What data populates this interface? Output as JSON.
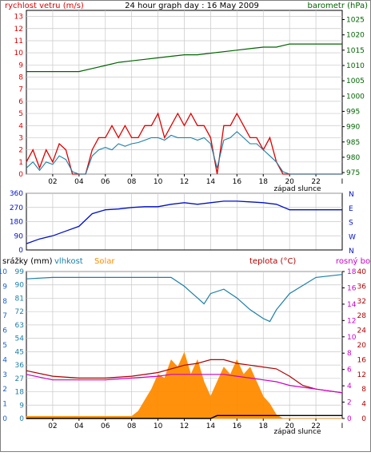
{
  "colors": {
    "wind": "#e00000",
    "gust": "#1a7fa8",
    "pressure": "#006400",
    "direction": "#0010c8",
    "humidity": "#1a7fa8",
    "solar": "#ff8c00",
    "temperature": "#b00000",
    "dewpoint": "#cc00cc",
    "rain": "#000000",
    "grid": "#c8c8c8",
    "axis": "#000000"
  },
  "chart_data": [
    {
      "type": "line",
      "title": "24 hour graph day : 16 May 2009",
      "left_label": "rychlost vetru (m/s)",
      "right_label": "barometr (hPa)",
      "bottom_note": "západ slunce",
      "x_ticks": [
        "02",
        "04",
        "06",
        "08",
        "10",
        "12",
        "14",
        "16",
        "18",
        "20",
        "22"
      ],
      "x_range": [
        0,
        24
      ],
      "y_left_ticks": [
        "0",
        "1",
        "2",
        "3",
        "4",
        "5",
        "6",
        "7",
        "8",
        "9",
        "10",
        "11",
        "12",
        "13"
      ],
      "y_left_range": [
        0,
        13.5
      ],
      "y_right_ticks": [
        "975",
        "980",
        "985",
        "990",
        "995",
        "1000",
        "1005",
        "1010",
        "1015",
        "1020",
        "1025"
      ],
      "y_right_range": [
        974.5,
        1028
      ],
      "grid": true,
      "series": [
        {
          "key": "wind",
          "x": [
            0,
            0.5,
            1,
            1.5,
            2,
            2.5,
            3,
            3.5,
            4,
            4.5,
            5,
            5.5,
            6,
            6.5,
            7,
            7.5,
            8,
            8.5,
            9,
            9.5,
            10,
            10.5,
            11,
            11.5,
            12,
            12.5,
            13,
            13.5,
            14,
            14.5,
            15,
            15.5,
            16,
            16.5,
            17,
            17.5,
            18,
            18.5,
            19,
            19.5,
            20,
            22,
            24
          ],
          "values": [
            1,
            2,
            0.5,
            2,
            1,
            2.5,
            2,
            0,
            0,
            0,
            2,
            3,
            3,
            4,
            3,
            4,
            3,
            3,
            4,
            4,
            5,
            3,
            4,
            5,
            4,
            5,
            4,
            4,
            3,
            0,
            4,
            4,
            5,
            4,
            3,
            3,
            2,
            3,
            1,
            0,
            0,
            0,
            0
          ]
        },
        {
          "key": "gust",
          "x": [
            0,
            0.5,
            1,
            1.5,
            2,
            2.5,
            3,
            3.5,
            4,
            4.5,
            5,
            5.5,
            6,
            6.5,
            7,
            7.5,
            8,
            8.5,
            9,
            9.5,
            10,
            10.5,
            11,
            11.5,
            12,
            12.5,
            13,
            13.5,
            14,
            14.5,
            15,
            15.5,
            16,
            16.5,
            17,
            17.5,
            18,
            18.5,
            19,
            19.5,
            20,
            22,
            24
          ],
          "values": [
            0.5,
            1,
            0.3,
            1,
            0.8,
            1.5,
            1.2,
            0.2,
            0,
            0,
            1.5,
            2,
            2.2,
            2,
            2.5,
            2.3,
            2.5,
            2.6,
            2.8,
            3,
            3,
            2.8,
            3.2,
            3,
            3,
            3,
            2.8,
            3,
            2.5,
            0.5,
            2.8,
            3,
            3.5,
            3,
            2.5,
            2.5,
            2,
            1.5,
            1,
            0.2,
            0,
            0,
            0
          ]
        },
        {
          "key": "pressure",
          "x": [
            0,
            4,
            5,
            6,
            7,
            8,
            9,
            10,
            11,
            12,
            13,
            14,
            15,
            16,
            17,
            18,
            19,
            20,
            22,
            24
          ],
          "values": [
            1008,
            1008,
            1009,
            1010,
            1011,
            1011.5,
            1012,
            1012.5,
            1013,
            1013.5,
            1013.5,
            1014,
            1014.5,
            1015,
            1015.5,
            1016,
            1016,
            1017,
            1017,
            1017
          ]
        }
      ]
    },
    {
      "type": "line",
      "y_left_ticks": [
        "0",
        "90",
        "180",
        "270",
        "360"
      ],
      "y_left_range": [
        0,
        360
      ],
      "y_right_ticks": [
        "N",
        "E",
        "S",
        "W",
        "N"
      ],
      "series": [
        {
          "key": "direction",
          "x": [
            0,
            1,
            2,
            3,
            4,
            5,
            6,
            7,
            8,
            9,
            10,
            11,
            12,
            13,
            14,
            15,
            16,
            17,
            18,
            19,
            20,
            22,
            24
          ],
          "values": [
            40,
            70,
            90,
            120,
            150,
            230,
            255,
            260,
            270,
            275,
            275,
            290,
            300,
            290,
            300,
            310,
            310,
            305,
            300,
            290,
            255,
            255,
            255
          ]
        }
      ]
    },
    {
      "type": "area",
      "left_labels": [
        "srážky (mm)",
        "vlhkost",
        "Solar"
      ],
      "right_labels": [
        "teplota (°C)",
        "rosný bod"
      ],
      "bottom_note": "západ slunce",
      "x_ticks": [
        "02",
        "04",
        "06",
        "08",
        "10",
        "12",
        "14",
        "16",
        "18",
        "20",
        "22"
      ],
      "y_left_ticks_outer": [
        "0",
        "1",
        "2",
        "3",
        "4",
        "5",
        "6",
        "7",
        "8",
        "9",
        "10"
      ],
      "y_left_ticks_inner": [
        "0",
        "9",
        "18",
        "27",
        "36",
        "45",
        "54",
        "63",
        "72",
        "81",
        "90",
        "99"
      ],
      "y_right_ticks_outer": [
        "0",
        "4",
        "8",
        "12",
        "16",
        "20",
        "24",
        "28",
        "32",
        "36",
        "40"
      ],
      "y_right_ticks_inner": [
        "0",
        "2",
        "4",
        "6",
        "8",
        "10",
        "12",
        "14",
        "16",
        "18"
      ],
      "humidity_range": [
        0,
        100
      ],
      "temp_range": [
        0,
        40
      ],
      "series": [
        {
          "key": "humidity",
          "x": [
            0,
            2,
            4,
            6,
            8,
            10,
            11,
            12,
            12.5,
            13,
            13.5,
            14,
            15,
            16,
            17,
            18,
            18.5,
            19,
            20,
            22,
            24
          ],
          "values": [
            95,
            96,
            96,
            96,
            96,
            96,
            96,
            90,
            86,
            82,
            78,
            85,
            88,
            82,
            74,
            68,
            66,
            74,
            85,
            96,
            98
          ]
        },
        {
          "key": "temperature",
          "x": [
            0,
            2,
            4,
            6,
            8,
            10,
            11,
            12,
            13,
            14,
            15,
            16,
            17,
            18,
            19,
            20,
            21,
            22,
            24
          ],
          "values": [
            13,
            11.5,
            11,
            11,
            11.5,
            12.5,
            13.5,
            14.5,
            15,
            16,
            16,
            15,
            14.5,
            14,
            13.5,
            11.5,
            9,
            8,
            7
          ]
        },
        {
          "key": "dewpoint",
          "x": [
            0,
            2,
            4,
            6,
            8,
            10,
            11,
            12,
            13,
            14,
            15,
            16,
            17,
            18,
            19,
            20,
            22,
            24
          ],
          "values": [
            12,
            10.5,
            10.5,
            10.5,
            11,
            11.5,
            12,
            12,
            12,
            12,
            12,
            11.5,
            11,
            10.5,
            10,
            9,
            8,
            7
          ]
        },
        {
          "key": "solar",
          "x": [
            0,
            8,
            8.5,
            9,
            9.5,
            10,
            10.5,
            11,
            11.5,
            12,
            12.5,
            13,
            13.5,
            14,
            14.5,
            15,
            15.5,
            16,
            16.5,
            17,
            17.5,
            18,
            18.5,
            19,
            19.5,
            24
          ],
          "values": [
            0.3,
            0.3,
            1,
            2.5,
            4,
            6,
            5.5,
            8,
            7,
            9,
            6,
            8,
            5,
            3,
            5,
            7,
            6,
            8,
            6,
            7,
            5,
            3,
            2,
            0.5,
            0,
            0
          ]
        },
        {
          "key": "rain",
          "x": [
            0,
            14,
            14.5,
            24
          ],
          "values": [
            0,
            0,
            0.2,
            0.2
          ]
        }
      ]
    }
  ]
}
